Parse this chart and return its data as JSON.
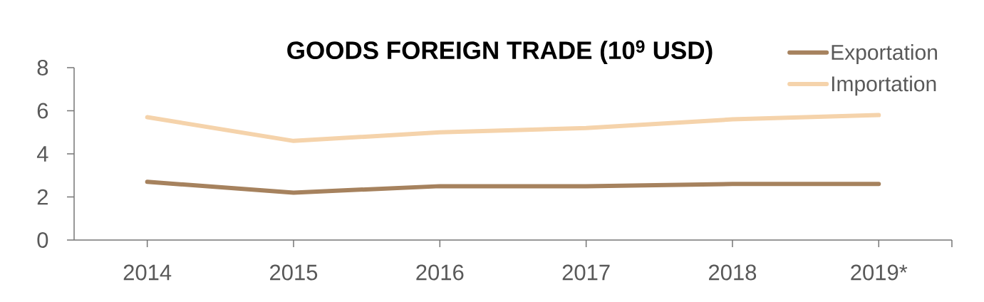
{
  "chart_data": {
    "type": "line",
    "title": "GOODS FOREIGN TRADE (10$^{9}$ USD)",
    "categories": [
      "2014",
      "2015",
      "2016",
      "2017",
      "2018",
      "2019*"
    ],
    "series": [
      {
        "name": "Exportation",
        "color": "#a6825e",
        "values": [
          2.7,
          2.2,
          2.5,
          2.5,
          2.6,
          2.6
        ]
      },
      {
        "name": "Importation",
        "color": "#f5d3ab",
        "values": [
          5.7,
          4.6,
          5.0,
          5.2,
          5.6,
          5.8
        ]
      }
    ],
    "ylim": [
      0,
      8
    ],
    "yticks": [
      0,
      2,
      4,
      6,
      8
    ],
    "legend": "top right",
    "line_style": "solid"
  }
}
